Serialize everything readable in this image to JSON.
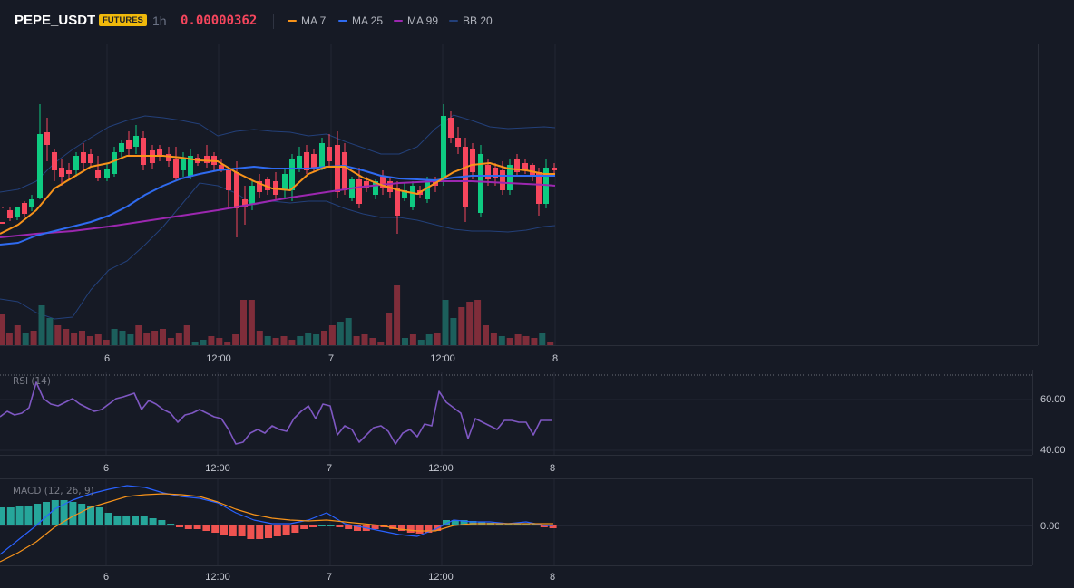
{
  "header": {
    "symbol": "PEPE_USDT",
    "badge": "FUTURES",
    "timeframe": "1h",
    "price": "0.00000362",
    "legend": [
      {
        "label": "MA 7",
        "color": "#f7931a"
      },
      {
        "label": "MA 25",
        "color": "#2f6bf0"
      },
      {
        "label": "MA 99",
        "color": "#9c27b0"
      },
      {
        "label": "BB 20",
        "color": "#23407a"
      }
    ]
  },
  "colors": {
    "up": "#0ecb81",
    "down": "#f6465d",
    "up_volume": "#1c5f5c",
    "down_volume": "#7f2d3a",
    "rsi": "#7e57c2",
    "macd": "#2962ff",
    "signal": "#f7931a",
    "hist_up": "#26a69a",
    "hist_down": "#ef5350"
  },
  "x_axis_labels": [
    "6",
    "12:00",
    "7",
    "12:00",
    "8"
  ],
  "rsi": {
    "label": "RSI (14)",
    "ticks": [
      "60.00",
      "40.00"
    ]
  },
  "macd": {
    "label": "MACD (12, 26, 9)",
    "ticks": [
      "0.00"
    ]
  }
}
